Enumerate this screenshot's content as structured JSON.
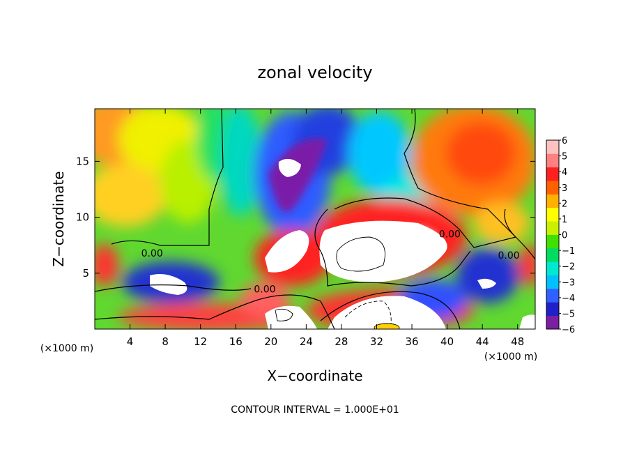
{
  "chart_data": {
    "type": "heatmap",
    "title": "zonal velocity",
    "xlabel": "X−coordinate",
    "ylabel": "Z−coordinate",
    "x_unit": "(×1000 m)",
    "y_unit": "(×1000 m)",
    "xlim": [
      0,
      50
    ],
    "ylim": [
      0,
      19.7
    ],
    "x_ticks": [
      4,
      8,
      12,
      16,
      20,
      24,
      28,
      32,
      36,
      40,
      44,
      48
    ],
    "y_ticks": [
      5,
      10,
      15
    ],
    "x_tick_labels": [
      "4",
      "8",
      "12",
      "16",
      "20",
      "24",
      "28",
      "32",
      "36",
      "40",
      "44",
      "48"
    ],
    "y_tick_labels": [
      "5",
      "10",
      "15"
    ],
    "colorbar": {
      "min": -6,
      "max": 6,
      "ticks": [
        6,
        5,
        4,
        3,
        2,
        1,
        0,
        -1,
        -2,
        -3,
        -4,
        -5,
        -6
      ],
      "tick_labels": [
        "6",
        "5",
        "4",
        "3",
        "2",
        "1",
        "0",
        "−1",
        "−2",
        "−3",
        "−4",
        "−5",
        "−6"
      ],
      "colors": [
        "#7b1fa2",
        "#2020c8",
        "#3060ff",
        "#00c0ff",
        "#00e8d0",
        "#00dc60",
        "#40e000",
        "#c8f000",
        "#ffff00",
        "#ffb000",
        "#ff6000",
        "#ff2020",
        "#ff8080",
        "#ffc0c0"
      ],
      "out_of_range_color": "#ffffff"
    },
    "contour_labels": [
      {
        "text": "0.00",
        "x": 6.5,
        "z": 6.8
      },
      {
        "text": "0.00",
        "x": 19.3,
        "z": 3.6
      },
      {
        "text": "0.00",
        "x": 40.3,
        "z": 8.5
      },
      {
        "text": "0.00",
        "x": 47.0,
        "z": 6.6
      }
    ],
    "footer": "CONTOUR INTERVAL = 1.000E+01"
  }
}
